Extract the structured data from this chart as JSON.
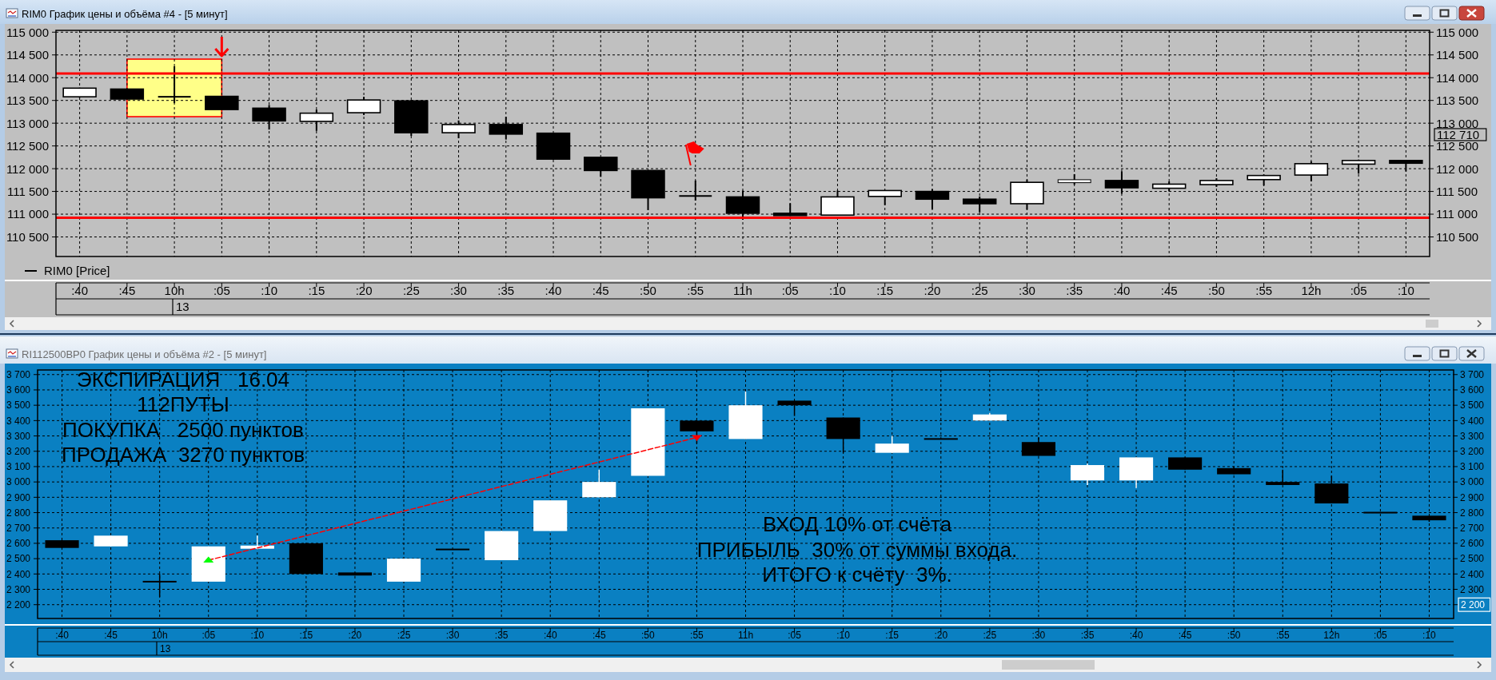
{
  "chart_data": [
    {
      "type": "candlestick",
      "title": "RIM0 График цены и объёма #4 - [5 минут]",
      "categories": [
        ":40",
        ":45",
        "10h",
        ":05",
        ":10",
        ":15",
        ":20",
        ":25",
        ":30",
        ":35",
        ":40",
        ":45",
        ":50",
        ":55",
        "11h",
        ":05",
        ":10",
        ":15",
        ":20",
        ":25",
        ":30",
        ":35",
        ":40",
        ":45",
        ":50",
        ":55",
        "12h",
        ":05",
        ":10"
      ],
      "series": [
        {
          "name": "RIM0 [Price]",
          "color": "#000000",
          "colors": [
            "#ffffff",
            "#000000",
            "#000000",
            "#000000",
            "#000000",
            "#ffffff",
            "#ffffff",
            "#000000",
            "#ffffff",
            "#000000",
            "#000000",
            "#000000",
            "#000000",
            "#000000",
            "#000000",
            "#000000",
            "#ffffff",
            "#ffffff",
            "#000000",
            "#000000",
            "#ffffff",
            "#ffffff",
            "#000000",
            "#ffffff",
            "#ffffff",
            "#ffffff",
            "#ffffff",
            "#ffffff",
            "#000000"
          ],
          "ohlc": [
            [
              113580,
              113780,
              113560,
              113770
            ],
            [
              113750,
              113760,
              113530,
              113530
            ],
            [
              113580,
              114250,
              113440,
              113580
            ],
            [
              113590,
              113600,
              113300,
              113300
            ],
            [
              113330,
              113400,
              112860,
              113050
            ],
            [
              113040,
              113300,
              112830,
              113220
            ],
            [
              113230,
              113580,
              113180,
              113510
            ],
            [
              113490,
              113510,
              112720,
              112790
            ],
            [
              112790,
              113060,
              112670,
              112970
            ],
            [
              112970,
              113140,
              112640,
              112760
            ],
            [
              112780,
              112790,
              112200,
              112210
            ],
            [
              112250,
              112250,
              111820,
              111960
            ],
            [
              111960,
              111960,
              111090,
              111360
            ],
            [
              111400,
              111740,
              111300,
              111400
            ],
            [
              111380,
              111520,
              110880,
              111020
            ],
            [
              111020,
              111240,
              110960,
              110970
            ],
            [
              110980,
              111520,
              110970,
              111380
            ],
            [
              111390,
              111530,
              111200,
              111520
            ],
            [
              111500,
              111550,
              111110,
              111330
            ],
            [
              111330,
              111390,
              111040,
              111230
            ],
            [
              111230,
              111760,
              111100,
              111700
            ],
            [
              111710,
              111880,
              111650,
              111740
            ],
            [
              111740,
              111940,
              111450,
              111580
            ],
            [
              111570,
              111720,
              111500,
              111660
            ],
            [
              111650,
              111790,
              111600,
              111740
            ],
            [
              111760,
              111870,
              111630,
              111850
            ],
            [
              111860,
              112160,
              111720,
              112110
            ],
            [
              112100,
              112200,
              111890,
              112180
            ],
            [
              112180,
              112190,
              111940,
              112120
            ]
          ]
        }
      ],
      "ylim": [
        110070,
        115040
      ],
      "yticks": [
        {
          "value": 110500,
          "label": "110 500"
        },
        {
          "value": 111000,
          "label": "111 000"
        },
        {
          "value": 111500,
          "label": "111 500"
        },
        {
          "value": 112000,
          "label": "112 000"
        },
        {
          "value": 112500,
          "label": "112 500"
        },
        {
          "value": 113000,
          "label": "113 000"
        },
        {
          "value": 113500,
          "label": "113 500"
        },
        {
          "value": 114000,
          "label": "114 000"
        },
        {
          "value": 114500,
          "label": "114 500"
        },
        {
          "value": 115000,
          "label": "115 000"
        }
      ],
      "y2lim": [
        110070,
        115040
      ],
      "y2ticks": [
        {
          "value": 110500,
          "label": "110 500"
        },
        {
          "value": 111000,
          "label": "111 000"
        },
        {
          "value": 111500,
          "label": "111 500"
        },
        {
          "value": 112000,
          "label": "112 000"
        },
        {
          "value": 112500,
          "label": "112 500"
        },
        {
          "value": 113000,
          "label": "113 000"
        },
        {
          "value": 113500,
          "label": "113 500"
        },
        {
          "value": 114000,
          "label": "114 000"
        },
        {
          "value": 114500,
          "label": "114 500"
        },
        {
          "value": 115000,
          "label": "115 000"
        }
      ],
      "grid": true,
      "legend": "bottom left",
      "ref_lines": [
        {
          "axis": "y",
          "value": 114090,
          "color": "#ff0000"
        },
        {
          "axis": "y",
          "value": 110920,
          "color": "#ff0000"
        }
      ],
      "annotations": [
        "13",
        "112 710"
      ]
    },
    {
      "type": "candlestick",
      "title": "RI112500BP0 График цены и объёма #2 - [5 минут]",
      "categories": [
        ":40",
        ":45",
        "10h",
        ":05",
        ":10",
        ":15",
        ":20",
        ":25",
        ":30",
        ":35",
        ":40",
        ":45",
        ":50",
        ":55",
        "11h",
        ":05",
        ":10",
        ":15",
        ":20",
        ":25",
        ":30",
        ":35",
        ":40",
        ":45",
        ":50",
        ":55",
        "12h",
        ":05",
        ":10"
      ],
      "series": [
        {
          "colors": [
            "#000000",
            "#ffffff",
            "#000000",
            "#ffffff",
            "#ffffff",
            "#000000",
            "#000000",
            "#ffffff",
            "#000000",
            "#ffffff",
            "#ffffff",
            "#ffffff",
            "#ffffff",
            "#000000",
            "#ffffff",
            "#000000",
            "#000000",
            "#ffffff",
            "#000000",
            "#ffffff",
            "#000000",
            "#ffffff",
            "#ffffff",
            "#000000",
            "#000000",
            "#000000",
            "#000000",
            "#000000",
            "#000000"
          ],
          "ohlc": [
            [
              2620,
              2620,
              2570,
              2570
            ],
            [
              2580,
              2650,
              2580,
              2650
            ],
            [
              2350,
              2400,
              2250,
              2350
            ],
            [
              2350,
              2580,
              2350,
              2580
            ],
            [
              2570,
              2650,
              2560,
              2580
            ],
            [
              2600,
              2600,
              2400,
              2400
            ],
            [
              2410,
              2410,
              2390,
              2390
            ],
            [
              2350,
              2500,
              2350,
              2500
            ],
            [
              2560,
              2560,
              2560,
              2560
            ],
            [
              2490,
              2680,
              2490,
              2680
            ],
            [
              2680,
              2880,
              2680,
              2880
            ],
            [
              2900,
              3080,
              2900,
              3000
            ],
            [
              3040,
              3480,
              3040,
              3480
            ],
            [
              3400,
              3400,
              3250,
              3330
            ],
            [
              3280,
              3590,
              3280,
              3500
            ],
            [
              3530,
              3530,
              3430,
              3500
            ],
            [
              3420,
              3420,
              3190,
              3280
            ],
            [
              3190,
              3300,
              3190,
              3250
            ],
            [
              3280,
              3280,
              3280,
              3280
            ],
            [
              3400,
              3450,
              3400,
              3440
            ],
            [
              3260,
              3290,
              3170,
              3170
            ],
            [
              3010,
              3120,
              2980,
              3110
            ],
            [
              3010,
              3160,
              2960,
              3160
            ],
            [
              3160,
              3160,
              3080,
              3080
            ],
            [
              3090,
              3100,
              3050,
              3050
            ],
            [
              3000,
              3080,
              2980,
              2980
            ],
            [
              2990,
              3040,
              2860,
              2860
            ],
            [
              2800,
              2800,
              2800,
              2800
            ],
            [
              2780,
              2780,
              2740,
              2750
            ]
          ]
        },
        {
          "type": "line",
          "x": [
            ":05",
            ":55"
          ],
          "values": [
            2490,
            3290
          ],
          "color": "#ff0000",
          "line_style": "dashed",
          "marker": "triangle",
          "colors": [
            "#00ff00",
            "#ff0000"
          ]
        }
      ],
      "ylim": [
        2110,
        3730
      ],
      "yticks": [
        {
          "value": 2200,
          "label": "2 200"
        },
        {
          "value": 2300,
          "label": "2 300"
        },
        {
          "value": 2400,
          "label": "2 400"
        },
        {
          "value": 2500,
          "label": "2 500"
        },
        {
          "value": 2600,
          "label": "2 600"
        },
        {
          "value": 2700,
          "label": "2 700"
        },
        {
          "value": 2800,
          "label": "2 800"
        },
        {
          "value": 2900,
          "label": "2 900"
        },
        {
          "value": 3000,
          "label": "3 000"
        },
        {
          "value": 3100,
          "label": "3 100"
        },
        {
          "value": 3200,
          "label": "3 200"
        },
        {
          "value": 3300,
          "label": "3 300"
        },
        {
          "value": 3400,
          "label": "3 400"
        },
        {
          "value": 3500,
          "label": "3 500"
        },
        {
          "value": 3600,
          "label": "3 600"
        },
        {
          "value": 3700,
          "label": "3 700"
        }
      ],
      "y2lim": [
        2110,
        3730
      ],
      "y2ticks": [
        {
          "value": 2200,
          "label": "2 200"
        },
        {
          "value": 2300,
          "label": "2 300"
        },
        {
          "value": 2400,
          "label": "2 400"
        },
        {
          "value": 2500,
          "label": "2 500"
        },
        {
          "value": 2600,
          "label": "2 600"
        },
        {
          "value": 2700,
          "label": "2 700"
        },
        {
          "value": 2800,
          "label": "2 800"
        },
        {
          "value": 2900,
          "label": "2 900"
        },
        {
          "value": 3000,
          "label": "3 000"
        },
        {
          "value": 3100,
          "label": "3 100"
        },
        {
          "value": 3200,
          "label": "3 200"
        },
        {
          "value": 3300,
          "label": "3 300"
        },
        {
          "value": 3400,
          "label": "3 400"
        },
        {
          "value": 3500,
          "label": "3 500"
        },
        {
          "value": 3600,
          "label": "3 600"
        },
        {
          "value": 3700,
          "label": "3 700"
        }
      ],
      "grid": true,
      "annotations": [
        "ЭКСПИРАЦИЯ   16.04",
        "112ПУТЫ",
        "ПОКУПКА   2500 пунктов",
        "ПРОДАЖА  3270 пунктов",
        "ВХОД 10% от счёта",
        "ПРИБЫЛЬ  30% от суммы входа.",
        "ИТОГО к счёту  3%.",
        "13"
      ]
    }
  ]
}
